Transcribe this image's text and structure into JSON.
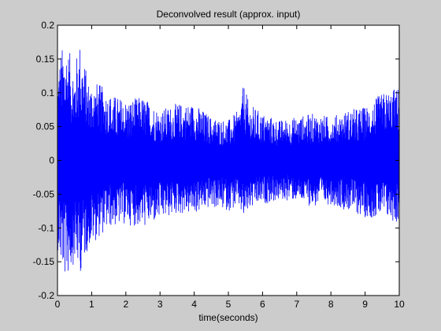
{
  "chart_data": {
    "type": "line",
    "title": "Deconvolved result (approx. input)",
    "xlabel": "time(seconds)",
    "ylabel": "",
    "xlim": [
      0,
      10
    ],
    "ylim": [
      -0.2,
      0.2
    ],
    "xticks": [
      0,
      1,
      2,
      3,
      4,
      5,
      6,
      7,
      8,
      9,
      10
    ],
    "yticks": [
      -0.2,
      -0.15,
      -0.1,
      -0.05,
      0,
      0.05,
      0.1,
      0.15,
      0.2
    ],
    "ytick_labels": [
      "-0.2",
      "-0.15",
      "-0.1",
      "-0.05",
      "0",
      "0.05",
      "0.1",
      "0.15",
      "0.2"
    ],
    "grid": false,
    "line_color": "#0000ff",
    "series": [
      {
        "name": "",
        "envelope_time": [
          0,
          0.1,
          0.25,
          0.5,
          0.65,
          0.9,
          1.2,
          1.5,
          2,
          2.5,
          3,
          3.5,
          4,
          4.5,
          5,
          5.3,
          5.45,
          5.6,
          6,
          6.5,
          7,
          7.5,
          8,
          8.5,
          9,
          9.5,
          10
        ],
        "envelope_upper": [
          0.13,
          0.165,
          0.175,
          0.14,
          0.178,
          0.12,
          0.115,
          0.1,
          0.09,
          0.095,
          0.075,
          0.085,
          0.085,
          0.065,
          0.06,
          0.075,
          0.115,
          0.085,
          0.07,
          0.06,
          0.065,
          0.07,
          0.065,
          0.075,
          0.08,
          0.1,
          0.11
        ],
        "envelope_lower": [
          -0.13,
          -0.16,
          -0.178,
          -0.15,
          -0.17,
          -0.13,
          -0.115,
          -0.1,
          -0.095,
          -0.1,
          -0.09,
          -0.08,
          -0.08,
          -0.07,
          -0.075,
          -0.07,
          -0.09,
          -0.075,
          -0.065,
          -0.06,
          -0.06,
          -0.07,
          -0.065,
          -0.075,
          -0.085,
          -0.085,
          -0.095
        ]
      }
    ]
  }
}
